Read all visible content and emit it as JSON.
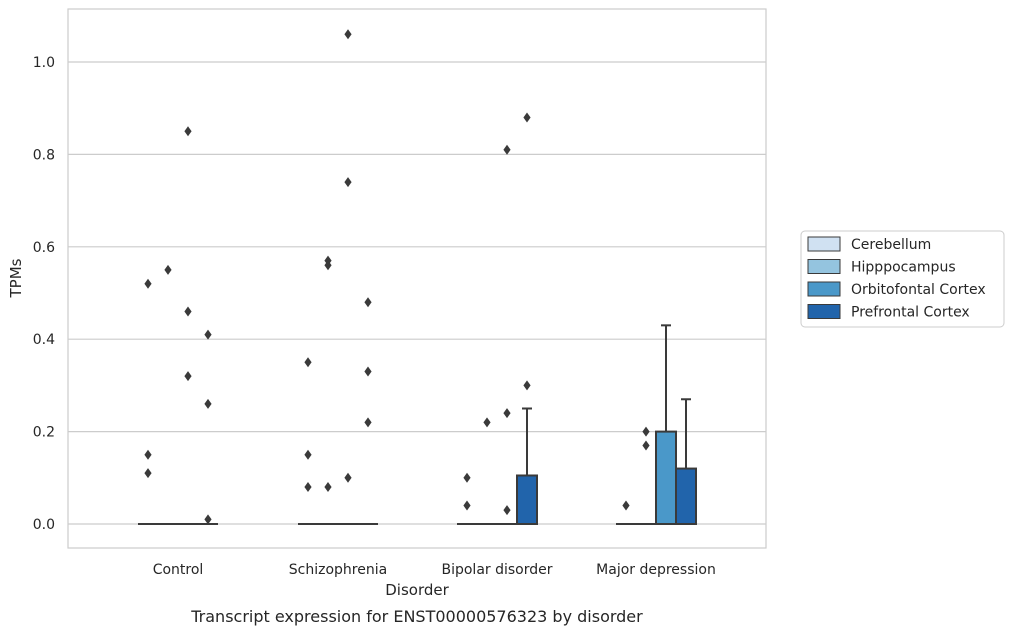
{
  "chart_data": {
    "type": "boxplot",
    "title": "",
    "caption": "Transcript expression for ENST00000576323 by disorder",
    "xlabel": "Disorder",
    "ylabel": "TPMs",
    "ylim": [
      -0.05,
      1.12
    ],
    "yticks": [
      "0.0",
      "0.2",
      "0.4",
      "0.6",
      "0.8",
      "1.0"
    ],
    "grid": "horizontal",
    "legend_position": "right",
    "categories": [
      "Control",
      "Schizophrenia",
      "Bipolar disorder",
      "Major depression"
    ],
    "hue": [
      {
        "name": "Cerebellum",
        "color": "#d0e1f2"
      },
      {
        "name": "Hipppocampus",
        "color": "#94c4df"
      },
      {
        "name": "Orbitofontal Cortex",
        "color": "#4a98c9"
      },
      {
        "name": "Prefrontal Cortex",
        "color": "#2164ab"
      }
    ],
    "boxes": [
      {
        "category": "Control",
        "hue": "Cerebellum",
        "q1": 0,
        "median": 0,
        "q3": 0,
        "whisker_high": 0,
        "outliers": [
          0.15,
          0.11,
          0.52
        ]
      },
      {
        "category": "Control",
        "hue": "Hipppocampus",
        "q1": 0,
        "median": 0,
        "q3": 0,
        "whisker_high": 0,
        "outliers": [
          0.55
        ]
      },
      {
        "category": "Control",
        "hue": "Orbitofontal Cortex",
        "q1": 0,
        "median": 0,
        "q3": 0,
        "whisker_high": 0,
        "outliers": [
          0.85,
          0.46,
          0.32
        ]
      },
      {
        "category": "Control",
        "hue": "Prefrontal Cortex",
        "q1": 0,
        "median": 0,
        "q3": 0,
        "whisker_high": 0,
        "outliers": [
          0.41,
          0.26,
          0.01
        ]
      },
      {
        "category": "Schizophrenia",
        "hue": "Cerebellum",
        "q1": 0,
        "median": 0,
        "q3": 0,
        "whisker_high": 0,
        "outliers": [
          0.35,
          0.15,
          0.08
        ]
      },
      {
        "category": "Schizophrenia",
        "hue": "Hipppocampus",
        "q1": 0,
        "median": 0,
        "q3": 0,
        "whisker_high": 0,
        "outliers": [
          0.57,
          0.56,
          0.08
        ]
      },
      {
        "category": "Schizophrenia",
        "hue": "Orbitofontal Cortex",
        "q1": 0,
        "median": 0,
        "q3": 0,
        "whisker_high": 0,
        "outliers": [
          1.06,
          0.74,
          0.1
        ]
      },
      {
        "category": "Schizophrenia",
        "hue": "Prefrontal Cortex",
        "q1": 0,
        "median": 0,
        "q3": 0,
        "whisker_high": 0,
        "outliers": [
          0.48,
          0.33,
          0.22
        ]
      },
      {
        "category": "Bipolar disorder",
        "hue": "Cerebellum",
        "q1": 0,
        "median": 0,
        "q3": 0,
        "whisker_high": 0,
        "outliers": [
          0.1,
          0.04
        ]
      },
      {
        "category": "Bipolar disorder",
        "hue": "Hipppocampus",
        "q1": 0,
        "median": 0,
        "q3": 0,
        "whisker_high": 0,
        "outliers": [
          0.22
        ]
      },
      {
        "category": "Bipolar disorder",
        "hue": "Orbitofontal Cortex",
        "q1": 0,
        "median": 0,
        "q3": 0,
        "whisker_high": 0,
        "outliers": [
          0.81,
          0.24,
          0.03
        ]
      },
      {
        "category": "Bipolar disorder",
        "hue": "Prefrontal Cortex",
        "q1": 0,
        "median": 0,
        "q3": 0.105,
        "whisker_high": 0.25,
        "outliers": [
          0.88,
          0.3
        ]
      },
      {
        "category": "Major depression",
        "hue": "Cerebellum",
        "q1": 0,
        "median": 0,
        "q3": 0,
        "whisker_high": 0,
        "outliers": [
          0.04
        ]
      },
      {
        "category": "Major depression",
        "hue": "Hipppocampus",
        "q1": 0,
        "median": 0,
        "q3": 0,
        "whisker_high": 0,
        "outliers": [
          0.2,
          0.17
        ]
      },
      {
        "category": "Major depression",
        "hue": "Orbitofontal Cortex",
        "q1": 0,
        "median": 0,
        "q3": 0.2,
        "whisker_high": 0.43,
        "outliers": []
      },
      {
        "category": "Major depression",
        "hue": "Prefrontal Cortex",
        "q1": 0,
        "median": 0,
        "q3": 0.12,
        "whisker_high": 0.27,
        "outliers": []
      }
    ]
  }
}
